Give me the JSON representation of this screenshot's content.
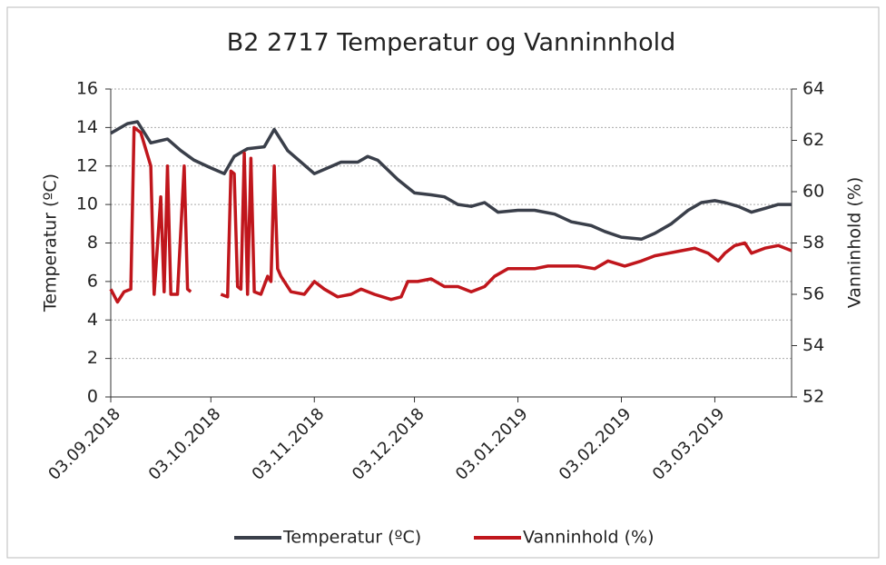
{
  "chart_data": {
    "type": "line",
    "title": "B2 2717 Temperatur og Vanninnhold",
    "y_label": "Temperatur (ºC)",
    "y2_label": "Vanninhold (%)",
    "xlim": [
      "03.09.2018",
      "26.03.2019"
    ],
    "xticks": [
      "03.09.2018",
      "03.10.2018",
      "03.11.2018",
      "03.12.2018",
      "03.01.2019",
      "03.02.2019",
      "03.03.2019"
    ],
    "ylim": [
      0,
      16
    ],
    "yticks": [
      0,
      2,
      4,
      6,
      8,
      10,
      12,
      14,
      16
    ],
    "y2lim": [
      52,
      64
    ],
    "y2ticks": [
      52,
      54,
      56,
      58,
      60,
      62,
      64
    ],
    "grid": true,
    "legend": "bottom",
    "series": [
      {
        "name": "Temperatur (ºC)",
        "color": "#3a3f4a",
        "x": [
          "03.09.2018",
          "08.09.2018",
          "11.09.2018",
          "15.09.2018",
          "20.09.2018",
          "24.09.2018",
          "28.09.2018",
          "03.10.2018",
          "07.10.2018",
          "10.10.2018",
          "14.10.2018",
          "19.10.2018",
          "22.10.2018",
          "26.10.2018",
          "03.11.2018",
          "07.11.2018",
          "11.11.2018",
          "16.11.2018",
          "19.11.2018",
          "22.11.2018",
          "28.11.2018",
          "03.12.2018",
          "08.12.2018",
          "12.12.2018",
          "16.12.2018",
          "20.12.2018",
          "24.12.2018",
          "28.12.2018",
          "03.01.2019",
          "08.01.2019",
          "14.01.2019",
          "19.01.2019",
          "25.01.2019",
          "29.01.2019",
          "03.02.2019",
          "09.02.2019",
          "13.02.2019",
          "18.02.2019",
          "23.02.2019",
          "27.02.2019",
          "03.03.2019",
          "06.03.2019",
          "10.03.2019",
          "14.03.2019",
          "18.03.2019",
          "22.03.2019",
          "26.03.2019"
        ],
        "values": [
          13.7,
          14.2,
          14.3,
          13.2,
          13.4,
          12.8,
          12.3,
          11.9,
          11.6,
          12.5,
          12.9,
          13.0,
          13.9,
          12.8,
          11.6,
          11.9,
          12.2,
          12.2,
          12.5,
          12.3,
          11.3,
          10.6,
          10.5,
          10.4,
          10.0,
          9.9,
          10.1,
          9.6,
          9.7,
          9.7,
          9.5,
          9.1,
          8.9,
          8.6,
          8.3,
          8.2,
          8.5,
          9.0,
          9.7,
          10.1,
          10.2,
          10.1,
          9.9,
          9.6,
          9.8,
          10.0,
          10.0
        ]
      },
      {
        "name": "Vanninhold (%)",
        "color": "#c0161c",
        "axis": "y2",
        "x": [
          "03.09.2018",
          "05.09.2018",
          "07.09.2018",
          "09.09.2018",
          "10.09.2018",
          "12.09.2018",
          "15.09.2018",
          "16.09.2018",
          "18.09.2018",
          "19.09.2018",
          "20.09.2018",
          "21.09.2018",
          "23.09.2018",
          "25.09.2018",
          "26.09.2018",
          "27.09.2018",
          "30.09.2018",
          "06.10.2018",
          "08.10.2018",
          "09.10.2018",
          "10.10.2018",
          "11.10.2018",
          "12.10.2018",
          "13.10.2018",
          "14.10.2018",
          "15.10.2018",
          "16.10.2018",
          "18.10.2018",
          "20.10.2018",
          "21.10.2018",
          "22.10.2018",
          "23.10.2018",
          "24.10.2018",
          "27.10.2018",
          "31.10.2018",
          "03.11.2018",
          "06.11.2018",
          "10.11.2018",
          "14.11.2018",
          "17.11.2018",
          "21.11.2018",
          "26.11.2018",
          "29.11.2018",
          "01.12.2018",
          "04.12.2018",
          "08.12.2018",
          "12.12.2018",
          "16.12.2018",
          "20.12.2018",
          "24.12.2018",
          "27.12.2018",
          "31.12.2018",
          "04.01.2019",
          "08.01.2019",
          "12.01.2019",
          "16.01.2019",
          "21.01.2019",
          "26.01.2019",
          "30.01.2019",
          "04.02.2019",
          "09.02.2019",
          "13.02.2019",
          "17.02.2019",
          "21.02.2019",
          "25.02.2019",
          "01.03.2019",
          "04.03.2019",
          "06.03.2019",
          "09.03.2019",
          "12.03.2019",
          "14.03.2019",
          "18.03.2019",
          "22.03.2019",
          "26.03.2019"
        ],
        "values": [
          56.2,
          55.7,
          56.1,
          56.2,
          62.5,
          62.3,
          61.0,
          56.0,
          59.8,
          56.1,
          61.0,
          56.0,
          56.0,
          61.0,
          56.2,
          56.1,
          null,
          56.0,
          55.9,
          60.8,
          60.7,
          56.3,
          56.2,
          61.5,
          56.0,
          61.3,
          56.1,
          56.0,
          56.7,
          56.5,
          61.0,
          57.0,
          56.7,
          56.1,
          56.0,
          56.5,
          56.2,
          55.9,
          56.0,
          56.2,
          56.0,
          55.8,
          55.9,
          56.5,
          56.5,
          56.6,
          56.3,
          56.3,
          56.1,
          56.3,
          56.7,
          57.0,
          57.0,
          57.0,
          57.1,
          57.1,
          57.1,
          57.0,
          57.3,
          57.1,
          57.3,
          57.5,
          57.6,
          57.7,
          57.8,
          57.6,
          57.3,
          57.6,
          57.9,
          58.0,
          57.6,
          57.8,
          57.9,
          57.7
        ]
      }
    ]
  }
}
